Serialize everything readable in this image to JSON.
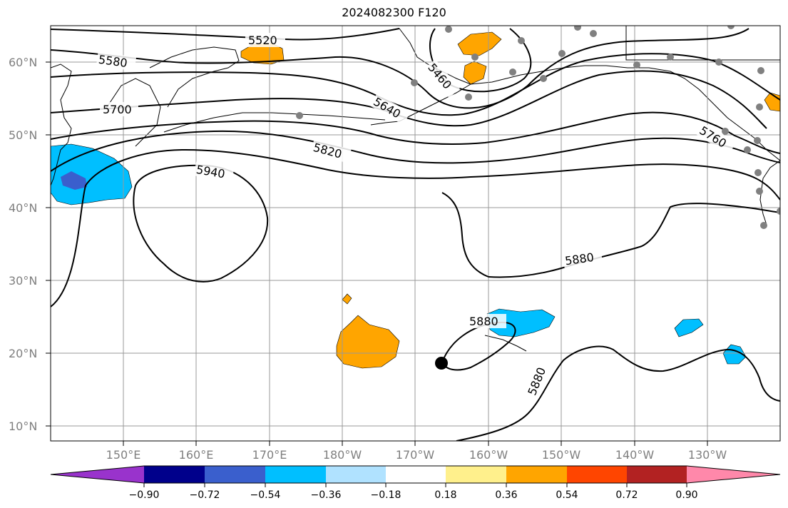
{
  "title": "2024082300 F120",
  "latitude_labels": [
    "60°N",
    "50°N",
    "40°N",
    "30°N",
    "20°N",
    "10°N"
  ],
  "longitude_labels": [
    "150°E",
    "160°E",
    "170°E",
    "180°W",
    "170°W",
    "160°W",
    "150°W",
    "140°W",
    "130°W"
  ],
  "contour_labels": [
    "5520",
    "5580",
    "5460",
    "5700",
    "5640",
    "5760",
    "5820",
    "5940",
    "5880",
    "5880",
    "5880"
  ],
  "colorbar": {
    "ticks": [
      "−0.90",
      "−0.72",
      "−0.54",
      "−0.36",
      "−0.18",
      "0.18",
      "0.36",
      "0.54",
      "0.72",
      "0.90"
    ],
    "colors": [
      "#9933cc",
      "#00008b",
      "#3a5fcd",
      "#00bfff",
      "#b0e2ff",
      "#ffffff",
      "#fff08c",
      "#ffa500",
      "#ff4500",
      "#b22222",
      "#ff88aa"
    ]
  },
  "colors": {
    "positive_fill": "#ffa500",
    "negative_fill": "#00bfff",
    "strong_negative_fill": "#3a5fcd",
    "station_marker": "#808080",
    "storm_marker": "#000000"
  }
}
